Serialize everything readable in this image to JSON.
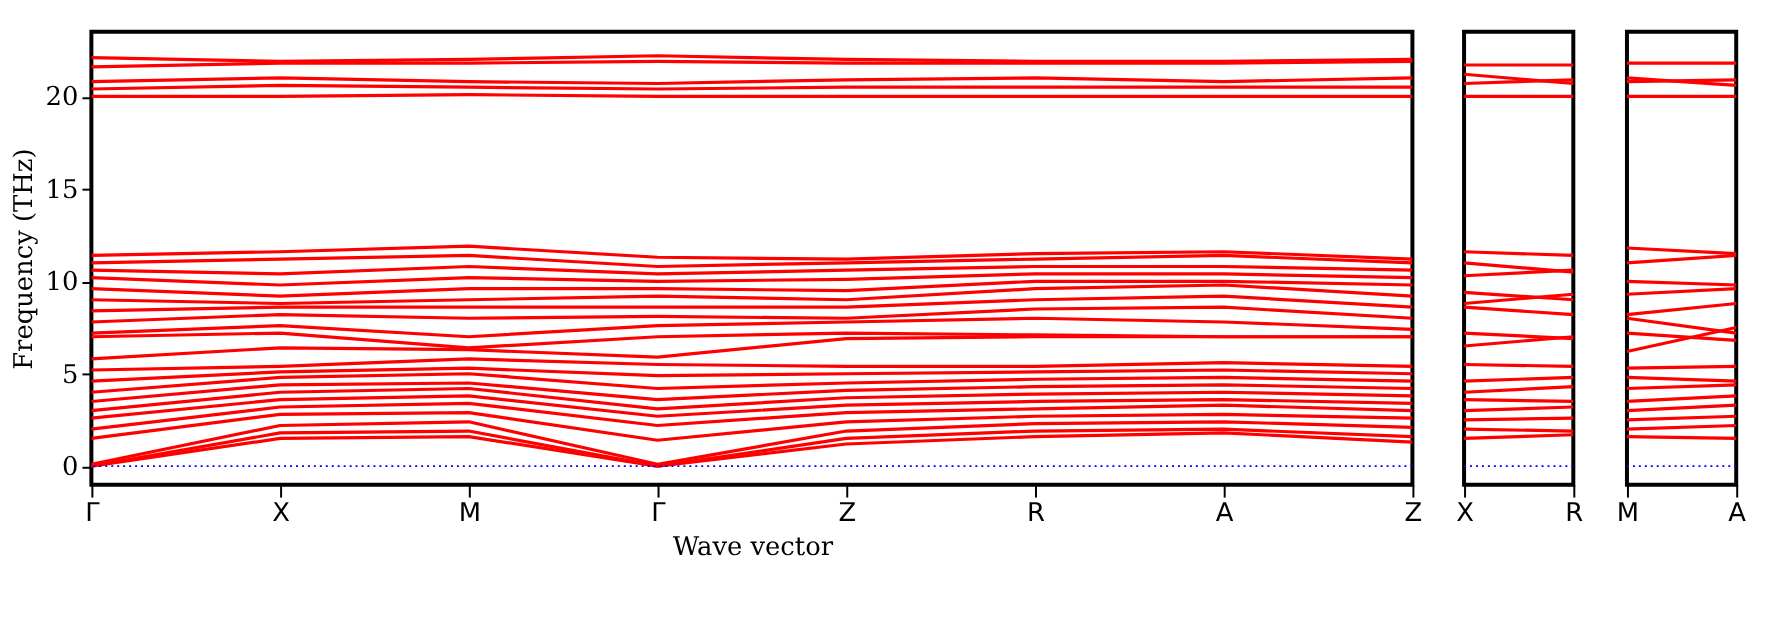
{
  "chart_data": [
    {
      "type": "line",
      "xlabel": "Wave vector",
      "ylabel": "Frequency (THz)",
      "categories": [
        "Γ",
        "X",
        "M",
        "Γ",
        "Z",
        "R",
        "A",
        "Z"
      ],
      "ylim": [
        -1,
        23.5
      ],
      "yticks": [
        0,
        5,
        10,
        15,
        20
      ],
      "grid": false,
      "legend": false,
      "line_style": "solid",
      "marker": "none",
      "ref_lines": [
        {
          "axis": "y",
          "value": 0,
          "color": "#0000ff",
          "line_style": "dotted"
        }
      ],
      "series": [
        {
          "color": "#ff0000",
          "values": [
            0,
            1.5,
            1.6,
            0,
            1.2,
            1.6,
            1.8,
            1.3
          ]
        },
        {
          "color": "#ff0000",
          "values": [
            0,
            1.8,
            1.9,
            0,
            1.5,
            1.9,
            2.0,
            1.6
          ]
        },
        {
          "color": "#ff0000",
          "values": [
            0.1,
            2.2,
            2.4,
            0.1,
            1.9,
            2.3,
            2.4,
            2.1
          ]
        },
        {
          "color": "#ff0000",
          "values": [
            1.5,
            2.8,
            2.9,
            1.4,
            2.4,
            2.7,
            2.8,
            2.6
          ]
        },
        {
          "color": "#ff0000",
          "values": [
            2.0,
            3.2,
            3.4,
            2.2,
            2.9,
            3.1,
            3.3,
            3.0
          ]
        },
        {
          "color": "#ff0000",
          "values": [
            2.6,
            3.6,
            3.8,
            2.7,
            3.3,
            3.5,
            3.6,
            3.4
          ]
        },
        {
          "color": "#ff0000",
          "values": [
            3.0,
            4.0,
            4.2,
            3.1,
            3.7,
            3.9,
            4.0,
            3.8
          ]
        },
        {
          "color": "#ff0000",
          "values": [
            3.5,
            4.4,
            4.5,
            3.6,
            4.1,
            4.3,
            4.4,
            4.2
          ]
        },
        {
          "color": "#ff0000",
          "values": [
            4.0,
            4.8,
            5.0,
            4.2,
            4.5,
            4.7,
            4.8,
            4.6
          ]
        },
        {
          "color": "#ff0000",
          "values": [
            4.6,
            5.1,
            5.3,
            4.9,
            5.0,
            5.1,
            5.2,
            5.0
          ]
        },
        {
          "color": "#ff0000",
          "values": [
            5.2,
            5.4,
            5.8,
            5.5,
            5.4,
            5.4,
            5.6,
            5.4
          ]
        },
        {
          "color": "#ff0000",
          "values": [
            5.8,
            6.4,
            6.3,
            5.9,
            6.9,
            7.0,
            7.0,
            7.0
          ]
        },
        {
          "color": "#ff0000",
          "values": [
            7.0,
            7.2,
            6.4,
            7.0,
            7.2,
            7.1,
            7.0,
            7.0
          ]
        },
        {
          "color": "#ff0000",
          "values": [
            7.2,
            7.6,
            7.0,
            7.6,
            7.8,
            8.0,
            7.8,
            7.4
          ]
        },
        {
          "color": "#ff0000",
          "values": [
            7.8,
            8.2,
            8.0,
            8.1,
            8.0,
            8.5,
            8.6,
            8.0
          ]
        },
        {
          "color": "#ff0000",
          "values": [
            8.4,
            8.6,
            8.6,
            8.6,
            8.6,
            9.0,
            9.2,
            8.6
          ]
        },
        {
          "color": "#ff0000",
          "values": [
            9.0,
            8.8,
            9.0,
            9.2,
            9.0,
            9.6,
            9.8,
            9.2
          ]
        },
        {
          "color": "#ff0000",
          "values": [
            9.6,
            9.2,
            9.6,
            9.6,
            9.5,
            10.0,
            10.0,
            9.8
          ]
        },
        {
          "color": "#ff0000",
          "values": [
            10.2,
            9.8,
            10.2,
            10.0,
            10.1,
            10.4,
            10.4,
            10.2
          ]
        },
        {
          "color": "#ff0000",
          "values": [
            10.6,
            10.4,
            10.8,
            10.4,
            10.6,
            10.8,
            10.8,
            10.6
          ]
        },
        {
          "color": "#ff0000",
          "values": [
            11.0,
            11.2,
            11.4,
            10.8,
            11.0,
            11.2,
            11.4,
            11.0
          ]
        },
        {
          "color": "#ff0000",
          "values": [
            11.4,
            11.6,
            11.9,
            11.3,
            11.2,
            11.5,
            11.6,
            11.2
          ]
        },
        {
          "color": "#ff0000",
          "values": [
            20.0,
            20.0,
            20.1,
            20.0,
            20.0,
            20.0,
            20.0,
            20.0
          ]
        },
        {
          "color": "#ff0000",
          "values": [
            20.4,
            20.6,
            20.5,
            20.4,
            20.5,
            20.5,
            20.5,
            20.5
          ]
        },
        {
          "color": "#ff0000",
          "values": [
            20.8,
            21.0,
            20.8,
            20.7,
            20.9,
            21.0,
            20.8,
            21.0
          ]
        },
        {
          "color": "#ff0000",
          "values": [
            21.6,
            21.8,
            21.8,
            21.9,
            21.8,
            21.8,
            21.8,
            21.9
          ]
        },
        {
          "color": "#ff0000",
          "values": [
            22.1,
            21.9,
            22.0,
            22.2,
            22.0,
            21.9,
            21.9,
            22.0
          ]
        }
      ]
    },
    {
      "type": "line",
      "categories": [
        "X",
        "R"
      ],
      "ylim": [
        -1,
        23.5
      ],
      "yticks": [
        0,
        5,
        10,
        15,
        20
      ],
      "tick_labels": "x",
      "grid": false,
      "legend": false,
      "line_style": "solid",
      "marker": "none",
      "ref_lines": [
        {
          "axis": "y",
          "value": 0,
          "color": "#0000ff",
          "line_style": "dotted"
        }
      ],
      "series": [
        {
          "color": "#ff0000",
          "values": [
            1.5,
            1.7
          ]
        },
        {
          "color": "#ff0000",
          "values": [
            2.0,
            1.9
          ]
        },
        {
          "color": "#ff0000",
          "values": [
            2.5,
            2.6
          ]
        },
        {
          "color": "#ff0000",
          "values": [
            3.0,
            3.2
          ]
        },
        {
          "color": "#ff0000",
          "values": [
            3.6,
            3.5
          ]
        },
        {
          "color": "#ff0000",
          "values": [
            4.0,
            4.3
          ]
        },
        {
          "color": "#ff0000",
          "values": [
            4.6,
            4.8
          ]
        },
        {
          "color": "#ff0000",
          "values": [
            5.5,
            5.4
          ]
        },
        {
          "color": "#ff0000",
          "values": [
            6.5,
            7.0
          ]
        },
        {
          "color": "#ff0000",
          "values": [
            7.2,
            6.9
          ]
        },
        {
          "color": "#ff0000",
          "values": [
            8.6,
            8.2
          ]
        },
        {
          "color": "#ff0000",
          "values": [
            8.8,
            9.3
          ]
        },
        {
          "color": "#ff0000",
          "values": [
            9.4,
            9.0
          ]
        },
        {
          "color": "#ff0000",
          "values": [
            10.3,
            10.6
          ]
        },
        {
          "color": "#ff0000",
          "values": [
            11.0,
            10.5
          ]
        },
        {
          "color": "#ff0000",
          "values": [
            11.6,
            11.4
          ]
        },
        {
          "color": "#ff0000",
          "values": [
            20.0,
            20.0
          ]
        },
        {
          "color": "#ff0000",
          "values": [
            20.7,
            20.9
          ]
        },
        {
          "color": "#ff0000",
          "values": [
            21.2,
            20.7
          ]
        },
        {
          "color": "#ff0000",
          "values": [
            21.7,
            21.7
          ]
        }
      ]
    },
    {
      "type": "line",
      "categories": [
        "M",
        "A"
      ],
      "ylim": [
        -1,
        23.5
      ],
      "yticks": [
        0,
        5,
        10,
        15,
        20
      ],
      "tick_labels": "x",
      "grid": false,
      "legend": false,
      "line_style": "solid",
      "marker": "none",
      "ref_lines": [
        {
          "axis": "y",
          "value": 0,
          "color": "#0000ff",
          "line_style": "dotted"
        }
      ],
      "series": [
        {
          "color": "#ff0000",
          "values": [
            1.6,
            1.5
          ]
        },
        {
          "color": "#ff0000",
          "values": [
            2.0,
            2.2
          ]
        },
        {
          "color": "#ff0000",
          "values": [
            2.5,
            2.7
          ]
        },
        {
          "color": "#ff0000",
          "values": [
            3.0,
            3.3
          ]
        },
        {
          "color": "#ff0000",
          "values": [
            3.5,
            3.8
          ]
        },
        {
          "color": "#ff0000",
          "values": [
            4.2,
            4.4
          ]
        },
        {
          "color": "#ff0000",
          "values": [
            4.8,
            4.6
          ]
        },
        {
          "color": "#ff0000",
          "values": [
            5.3,
            5.4
          ]
        },
        {
          "color": "#ff0000",
          "values": [
            6.2,
            7.5
          ]
        },
        {
          "color": "#ff0000",
          "values": [
            7.2,
            6.8
          ]
        },
        {
          "color": "#ff0000",
          "values": [
            8.0,
            7.2
          ]
        },
        {
          "color": "#ff0000",
          "values": [
            8.2,
            8.8
          ]
        },
        {
          "color": "#ff0000",
          "values": [
            9.3,
            9.6
          ]
        },
        {
          "color": "#ff0000",
          "values": [
            10.0,
            9.8
          ]
        },
        {
          "color": "#ff0000",
          "values": [
            11.0,
            11.4
          ]
        },
        {
          "color": "#ff0000",
          "values": [
            11.8,
            11.5
          ]
        },
        {
          "color": "#ff0000",
          "values": [
            20.0,
            20.0
          ]
        },
        {
          "color": "#ff0000",
          "values": [
            20.8,
            20.9
          ]
        },
        {
          "color": "#ff0000",
          "values": [
            21.0,
            20.6
          ]
        },
        {
          "color": "#ff0000",
          "values": [
            21.8,
            21.8
          ]
        }
      ]
    }
  ]
}
